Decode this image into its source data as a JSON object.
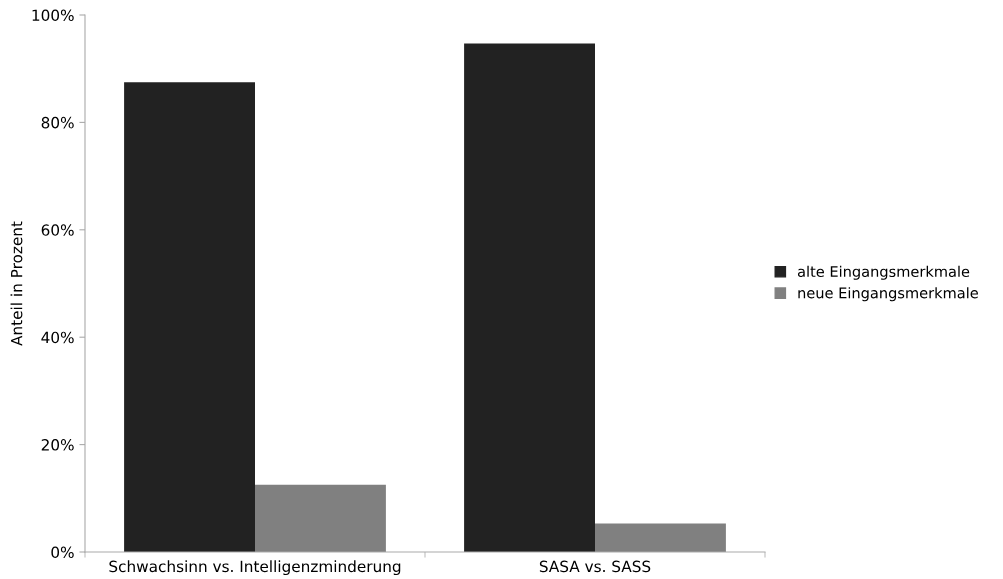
{
  "chart_data": {
    "type": "bar",
    "ylabel": "Anteil in Prozent",
    "categories": [
      "Schwachsinn vs. Intelligenzminderung",
      "SASA vs. SASS"
    ],
    "series": [
      {
        "name": "alte Eingangsmerkmale",
        "color": "#222222",
        "values": [
          87.5,
          94.7
        ]
      },
      {
        "name": "neue Eingangsmerkmale",
        "color": "#808080",
        "values": [
          12.5,
          5.3
        ]
      }
    ],
    "ylim": [
      0,
      100
    ],
    "yticks": [
      {
        "value": 0,
        "label": "0%"
      },
      {
        "value": 20,
        "label": "20%"
      },
      {
        "value": 40,
        "label": "40%"
      },
      {
        "value": 60,
        "label": "60%"
      },
      {
        "value": 80,
        "label": "80%"
      },
      {
        "value": 100,
        "label": "100%"
      }
    ],
    "grid": false,
    "legend": "right"
  }
}
